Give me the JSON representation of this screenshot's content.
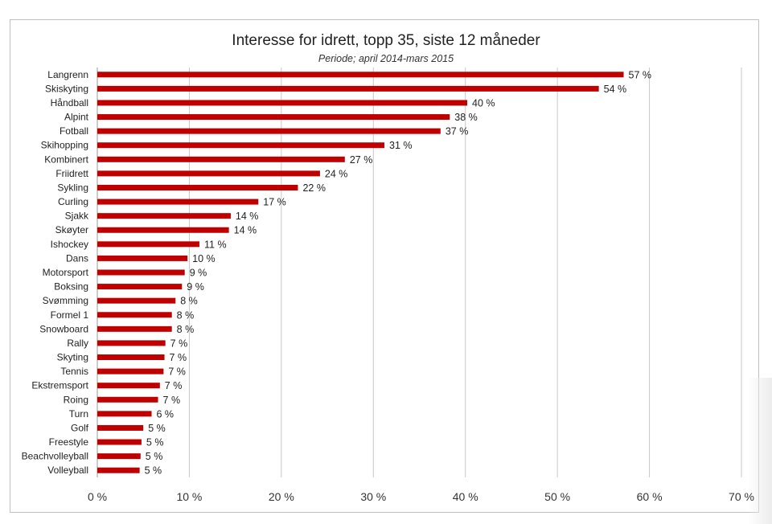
{
  "chart_data": {
    "type": "bar",
    "orientation": "horizontal",
    "title": "Interesse for idrett, topp 35, siste 12 måneder",
    "subtitle": "Periode; april 2014-mars 2015",
    "categories": [
      "Langrenn",
      "Skiskyting",
      "Håndball",
      "Alpint",
      "Fotball",
      "Skihopping",
      "Kombinert",
      "Friidrett",
      "Sykling",
      "Curling",
      "Sjakk",
      "Skøyter",
      "Ishockey",
      "Dans",
      "Motorsport",
      "Boksing",
      "Svømming",
      "Formel 1",
      "Snowboard",
      "Rally",
      "Skyting",
      "Tennis",
      "Ekstremsport",
      "Roing",
      "Turn",
      "Golf",
      "Freestyle",
      "Beachvolleyball",
      "Volleyball"
    ],
    "values": [
      57.2,
      54.5,
      40.2,
      38.3,
      37.3,
      31.2,
      26.9,
      24.2,
      21.8,
      17.5,
      14.5,
      14.3,
      11.1,
      9.8,
      9.5,
      9.2,
      8.5,
      8.1,
      8.1,
      7.4,
      7.3,
      7.2,
      6.8,
      6.6,
      5.9,
      5.0,
      4.8,
      4.7,
      4.6
    ],
    "value_labels": [
      "57 %",
      "54 %",
      "40 %",
      "38 %",
      "37 %",
      "31 %",
      "27 %",
      "24 %",
      "22 %",
      "17 %",
      "14 %",
      "14 %",
      "11 %",
      "10 %",
      "9 %",
      "9 %",
      "8 %",
      "8 %",
      "8 %",
      "7 %",
      "7 %",
      "7 %",
      "7 %",
      "7 %",
      "6 %",
      "5 %",
      "5 %",
      "5 %",
      "5 %"
    ],
    "xlim": [
      0,
      70
    ],
    "xticks": [
      "0 %",
      "10 %",
      "20 %",
      "30 %",
      "40 %",
      "50 %",
      "60 %",
      "70 %"
    ],
    "grid": true,
    "bar_color": "#c00000"
  }
}
